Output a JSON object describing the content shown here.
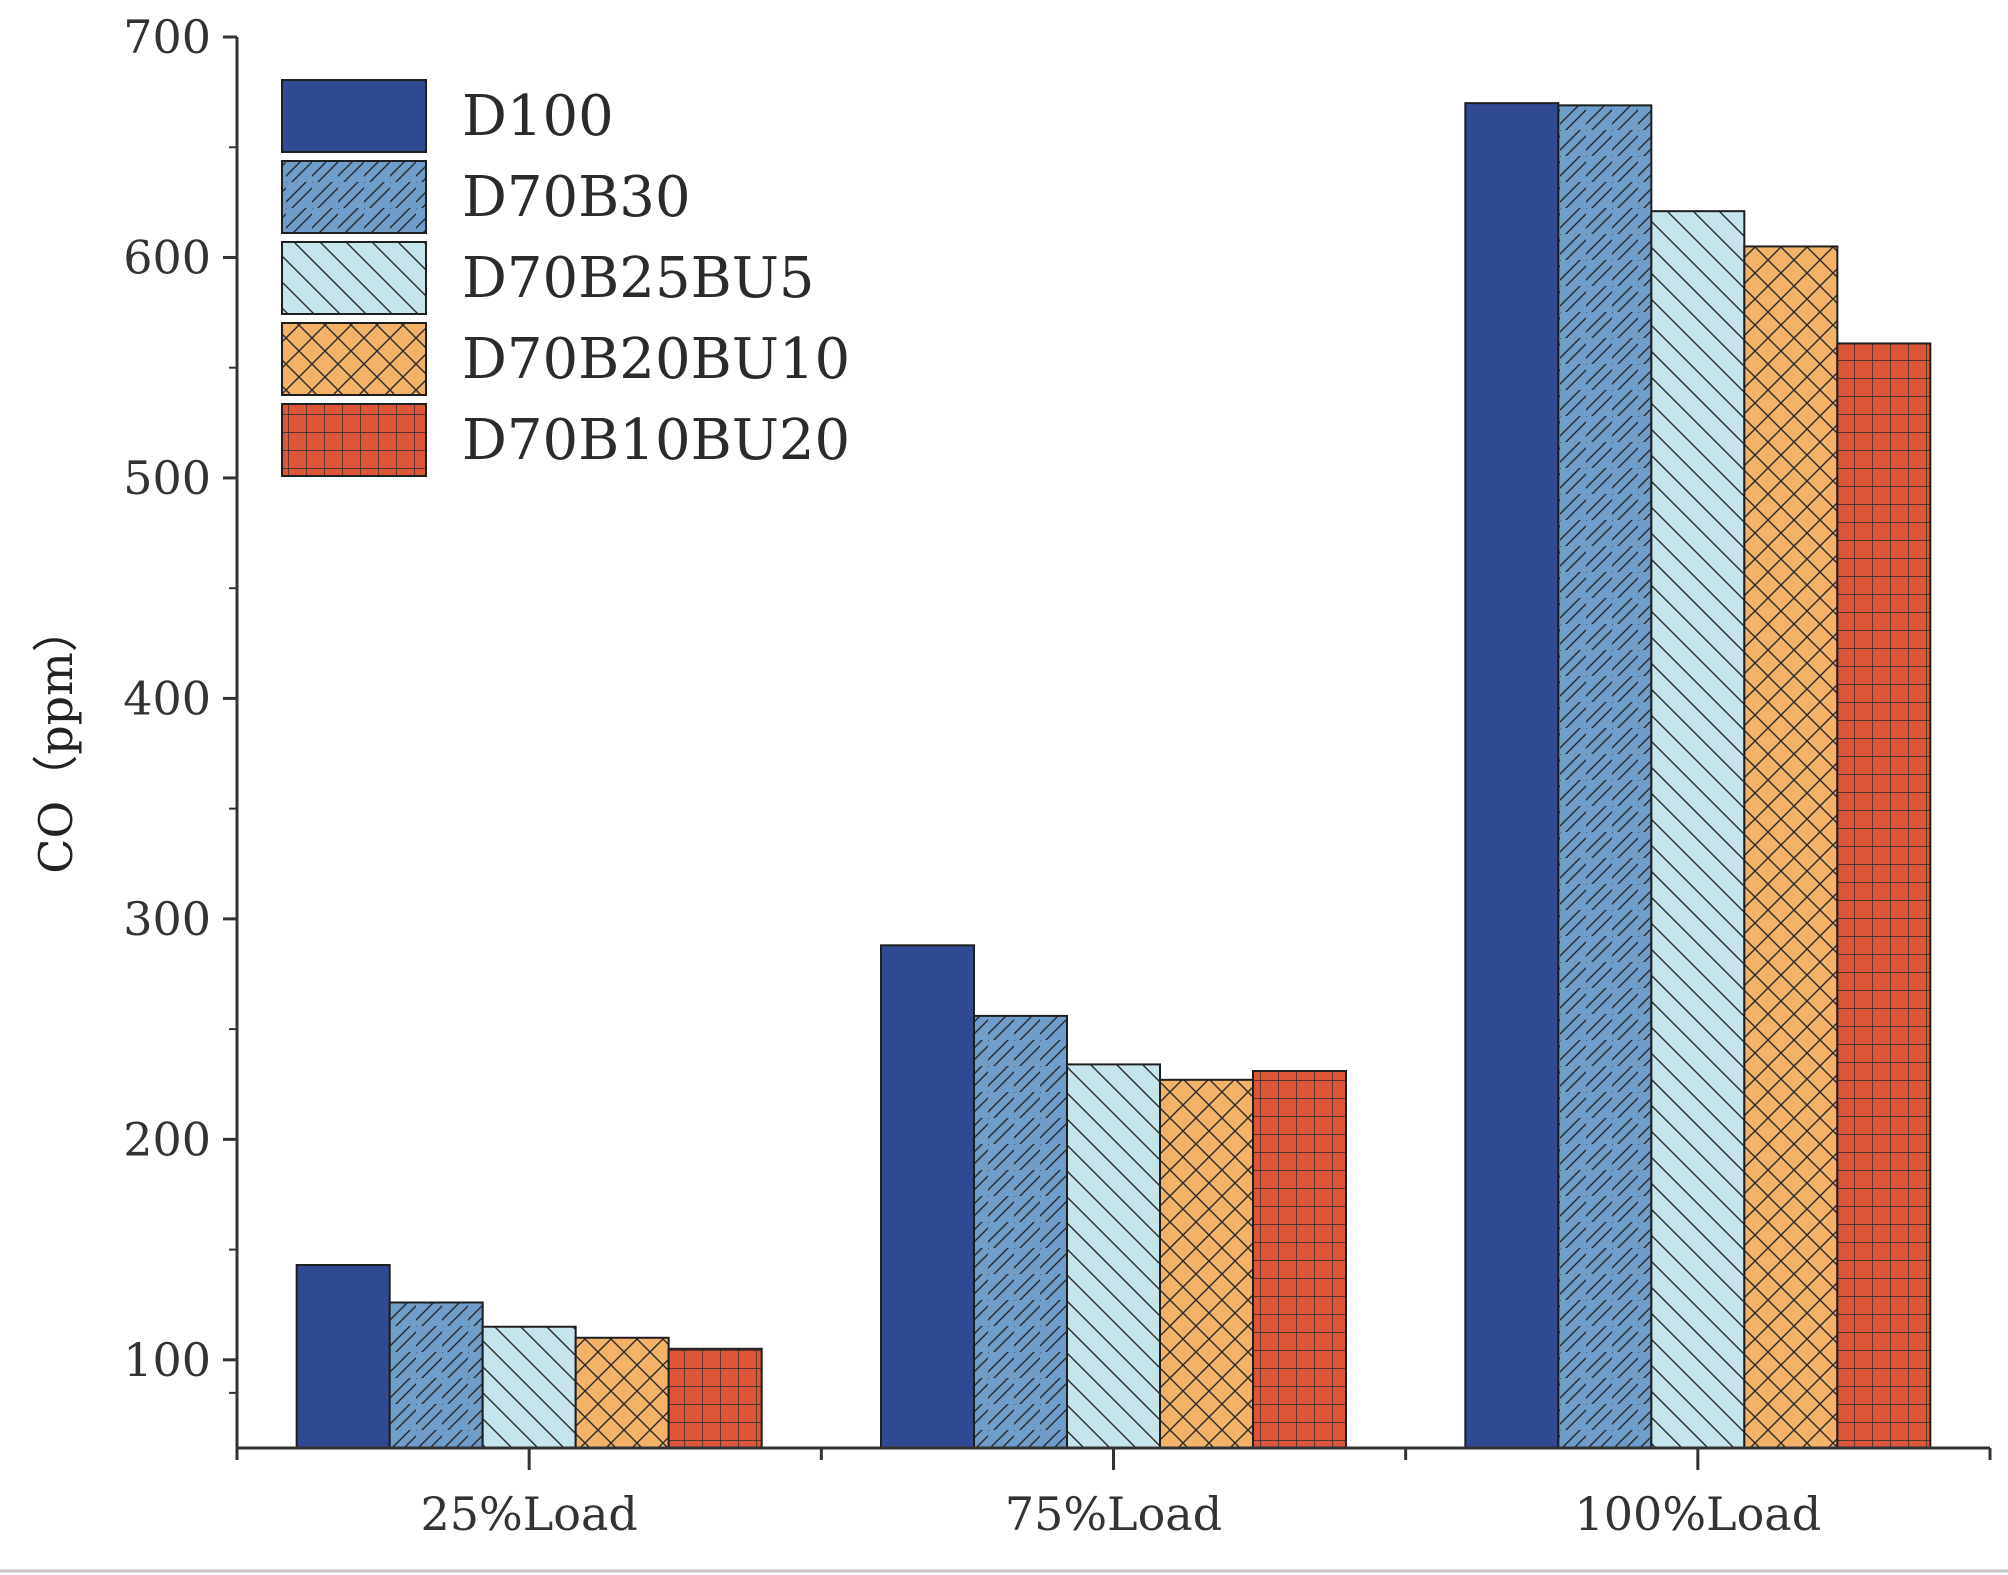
{
  "chart_data": {
    "type": "bar",
    "title": "",
    "xlabel": "",
    "ylabel": "CO（ppm）",
    "ylim": [
      60,
      700
    ],
    "yticks": [
      100,
      200,
      300,
      400,
      500,
      600,
      700
    ],
    "ytick_labels": [
      "100",
      "200",
      "300",
      "400",
      "500",
      "600",
      "700"
    ],
    "grid": false,
    "legend_position": "top-left",
    "categories": [
      "25%Load",
      "75%Load",
      "100%Load"
    ],
    "series": [
      {
        "name": "D100",
        "values": [
          143,
          288,
          670
        ],
        "color": "#324a93",
        "pattern": "solid"
      },
      {
        "name": "D70B30",
        "values": [
          126,
          256,
          669
        ],
        "color": "#6d9dc8",
        "pattern": "forward-diagonal"
      },
      {
        "name": "D70B25BU5",
        "values": [
          115,
          234,
          621
        ],
        "color": "#c5e4ec",
        "pattern": "backward-diagonal"
      },
      {
        "name": "D70B20BU10",
        "values": [
          110,
          227,
          605
        ],
        "color": "#f4b168",
        "pattern": "crosshatch"
      },
      {
        "name": "D70B10BU20",
        "values": [
          105,
          231,
          561
        ],
        "color": "#de5638",
        "pattern": "grid"
      }
    ]
  }
}
